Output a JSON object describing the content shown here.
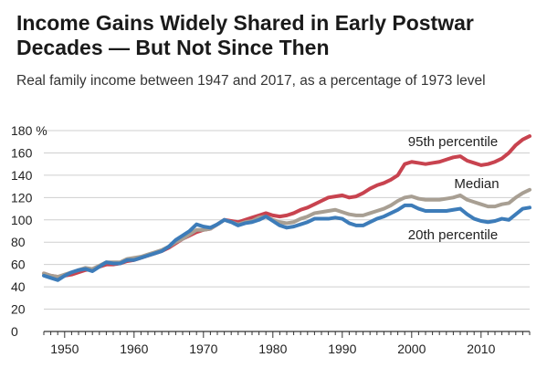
{
  "chart_data": {
    "type": "line",
    "title": "Income Gains Widely Shared in Early Postwar Decades — But Not Since Then",
    "subtitle": "Real family income between 1947 and 2017, as a percentage of 1973 level",
    "xlabel": "",
    "ylabel": "",
    "xlim": [
      1947,
      2017
    ],
    "ylim": [
      0,
      180
    ],
    "y_ticks": [
      0,
      20,
      40,
      60,
      80,
      100,
      120,
      140,
      160,
      180
    ],
    "y_tick_labels": [
      "0",
      "20",
      "40",
      "60",
      "80",
      "100",
      "120",
      "140",
      "160",
      "180 %"
    ],
    "x_ticks": [
      1950,
      1960,
      1970,
      1980,
      1990,
      2000,
      2010
    ],
    "x_tick_labels": [
      "1950",
      "1960",
      "1970",
      "1980",
      "1990",
      "2000",
      "2010"
    ],
    "grid": true,
    "legend": "direct labels",
    "series": [
      {
        "name": "95th percentile",
        "color": "#c8434f",
        "x": [
          1947,
          1948,
          1949,
          1950,
          1951,
          1952,
          1953,
          1954,
          1955,
          1956,
          1957,
          1958,
          1959,
          1960,
          1961,
          1962,
          1963,
          1964,
          1965,
          1966,
          1967,
          1968,
          1969,
          1970,
          1971,
          1972,
          1973,
          1974,
          1975,
          1976,
          1977,
          1978,
          1979,
          1980,
          1981,
          1982,
          1983,
          1984,
          1985,
          1986,
          1987,
          1988,
          1989,
          1990,
          1991,
          1992,
          1993,
          1994,
          1995,
          1996,
          1997,
          1998,
          1999,
          2000,
          2001,
          2002,
          2003,
          2004,
          2005,
          2006,
          2007,
          2008,
          2009,
          2010,
          2011,
          2012,
          2013,
          2014,
          2015,
          2016,
          2017
        ],
        "values": [
          52,
          50,
          49,
          50,
          51,
          53,
          55,
          56,
          58,
          60,
          60,
          61,
          63,
          64,
          66,
          68,
          70,
          72,
          75,
          79,
          83,
          86,
          89,
          91,
          92,
          96,
          100,
          99,
          98,
          100,
          102,
          104,
          106,
          104,
          103,
          104,
          106,
          109,
          111,
          114,
          117,
          120,
          121,
          122,
          120,
          121,
          124,
          128,
          131,
          133,
          136,
          140,
          150,
          152,
          151,
          150,
          151,
          152,
          154,
          156,
          157,
          153,
          151,
          149,
          150,
          152,
          155,
          160,
          167,
          172,
          175
        ]
      },
      {
        "name": "Median",
        "color": "#a89f93",
        "x": [
          1947,
          1948,
          1949,
          1950,
          1951,
          1952,
          1953,
          1954,
          1955,
          1956,
          1957,
          1958,
          1959,
          1960,
          1961,
          1962,
          1963,
          1964,
          1965,
          1966,
          1967,
          1968,
          1969,
          1970,
          1971,
          1972,
          1973,
          1974,
          1975,
          1976,
          1977,
          1978,
          1979,
          1980,
          1981,
          1982,
          1983,
          1984,
          1985,
          1986,
          1987,
          1988,
          1989,
          1990,
          1991,
          1992,
          1993,
          1994,
          1995,
          1996,
          1997,
          1998,
          1999,
          2000,
          2001,
          2002,
          2003,
          2004,
          2005,
          2006,
          2007,
          2008,
          2009,
          2010,
          2011,
          2012,
          2013,
          2014,
          2015,
          2016,
          2017
        ],
        "values": [
          52,
          50,
          49,
          51,
          53,
          55,
          57,
          56,
          59,
          62,
          62,
          62,
          65,
          66,
          67,
          69,
          71,
          73,
          76,
          80,
          83,
          87,
          91,
          91,
          92,
          96,
          100,
          98,
          96,
          98,
          99,
          102,
          103,
          100,
          98,
          97,
          98,
          101,
          103,
          106,
          107,
          108,
          109,
          107,
          105,
          104,
          104,
          106,
          108,
          110,
          113,
          117,
          120,
          121,
          119,
          118,
          118,
          118,
          119,
          120,
          122,
          118,
          116,
          114,
          112,
          112,
          114,
          115,
          120,
          124,
          127
        ]
      },
      {
        "name": "20th percentile",
        "color": "#3d7cb9",
        "x": [
          1947,
          1948,
          1949,
          1950,
          1951,
          1952,
          1953,
          1954,
          1955,
          1956,
          1957,
          1958,
          1959,
          1960,
          1961,
          1962,
          1963,
          1964,
          1965,
          1966,
          1967,
          1968,
          1969,
          1970,
          1971,
          1972,
          1973,
          1974,
          1975,
          1976,
          1977,
          1978,
          1979,
          1980,
          1981,
          1982,
          1983,
          1984,
          1985,
          1986,
          1987,
          1988,
          1989,
          1990,
          1991,
          1992,
          1993,
          1994,
          1995,
          1996,
          1997,
          1998,
          1999,
          2000,
          2001,
          2002,
          2003,
          2004,
          2005,
          2006,
          2007,
          2008,
          2009,
          2010,
          2011,
          2012,
          2013,
          2014,
          2015,
          2016,
          2017
        ],
        "values": [
          50,
          48,
          46,
          50,
          53,
          55,
          56,
          54,
          58,
          62,
          61,
          61,
          64,
          64,
          66,
          68,
          70,
          72,
          76,
          82,
          86,
          90,
          96,
          94,
          93,
          96,
          100,
          98,
          95,
          97,
          98,
          100,
          103,
          99,
          95,
          93,
          94,
          96,
          98,
          101,
          101,
          101,
          102,
          101,
          97,
          95,
          95,
          98,
          101,
          103,
          106,
          109,
          113,
          113,
          110,
          108,
          108,
          108,
          108,
          109,
          110,
          105,
          101,
          99,
          98,
          99,
          101,
          100,
          105,
          110,
          111
        ]
      }
    ]
  }
}
